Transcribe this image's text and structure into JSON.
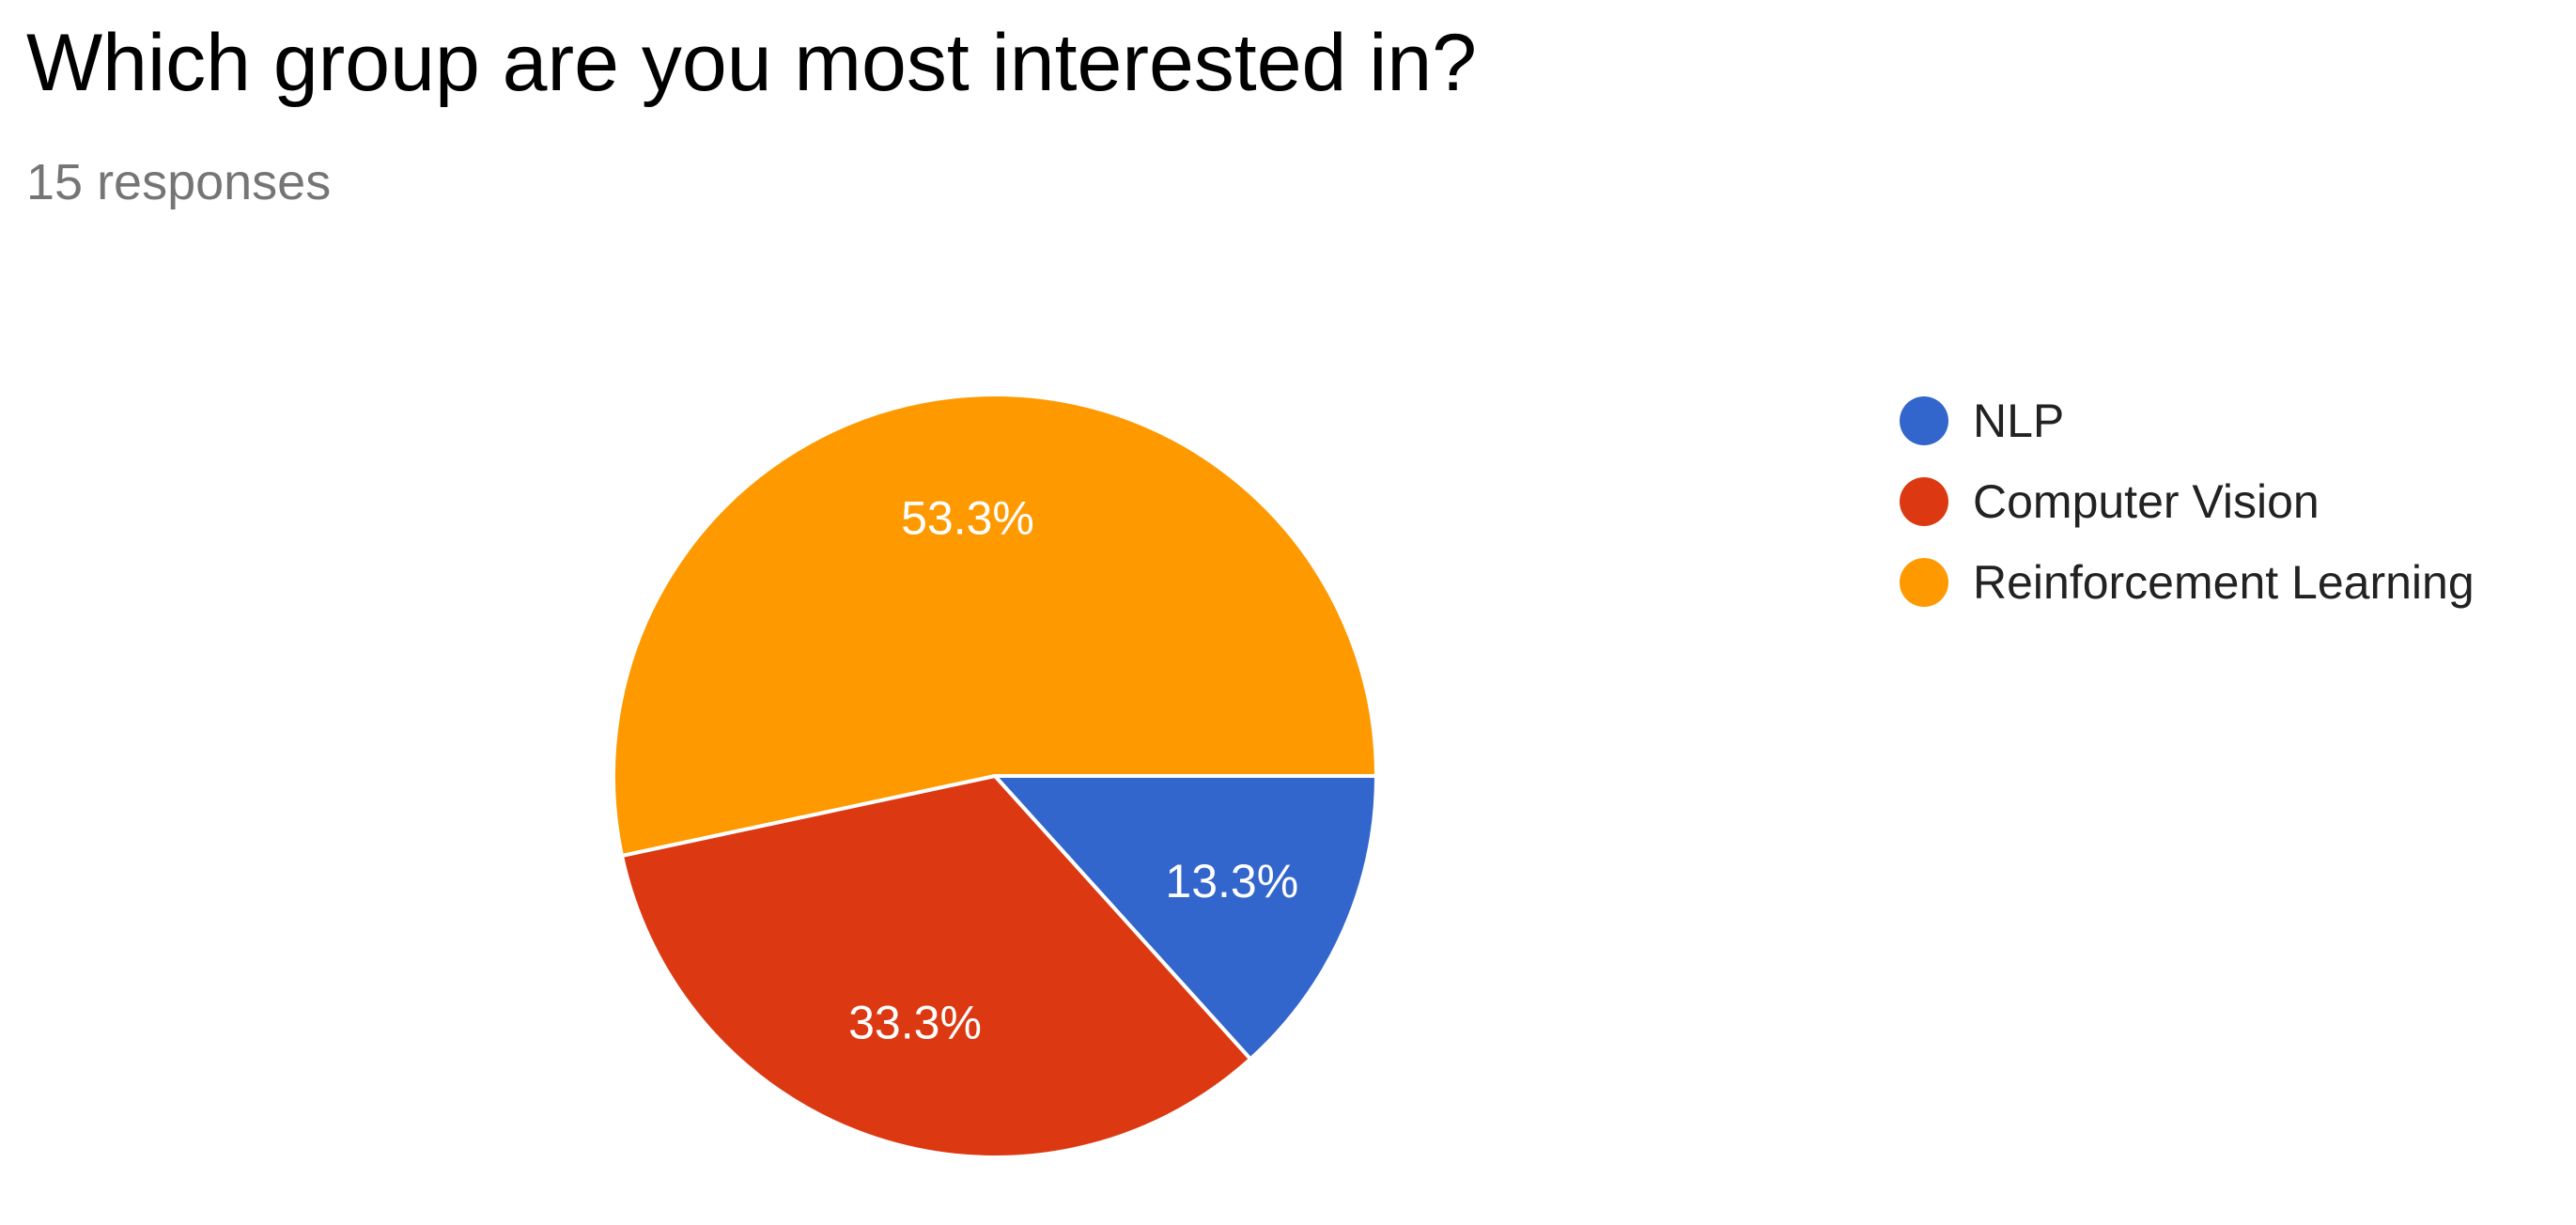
{
  "question": {
    "title": "Which group are you most interested in?",
    "response_count": "15 responses"
  },
  "chart_data": {
    "type": "pie",
    "legend_position": "right",
    "slices": [
      {
        "label": "NLP",
        "value": 13.3,
        "display": "13.3%",
        "color": "#3366cc"
      },
      {
        "label": "Computer Vision",
        "value": 33.3,
        "display": "33.3%",
        "color": "#dc3912"
      },
      {
        "label": "Reinforcement Learning",
        "value": 53.3,
        "display": "53.3%",
        "color": "#ff9900"
      }
    ]
  }
}
